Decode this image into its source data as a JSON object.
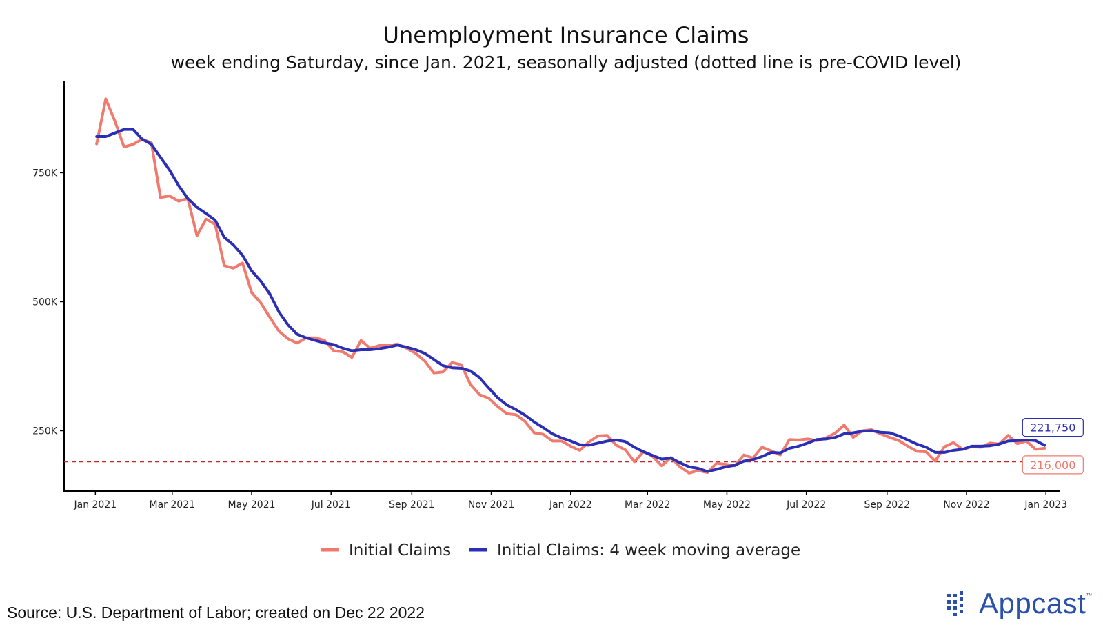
{
  "title": "Unemployment Insurance Claims",
  "subtitle": "week ending Saturday, since Jan. 2021, seasonally adjusted (dotted line is pre-COVID level)",
  "source": "Source: U.S. Department of Labor; created on Dec 22 2022",
  "logo": {
    "text": "Appcast",
    "tm": "™"
  },
  "chart_data": {
    "type": "line",
    "x_axis": {
      "type": "date",
      "range": [
        "2020-12-08",
        "2023-01-12"
      ],
      "ticks": [
        "2021-01-01",
        "2021-03-01",
        "2021-05-01",
        "2021-07-01",
        "2021-09-01",
        "2021-11-01",
        "2022-01-01",
        "2022-03-01",
        "2022-05-01",
        "2022-07-01",
        "2022-09-01",
        "2022-11-01",
        "2023-01-01"
      ],
      "tick_labels": [
        "Jan 2021",
        "Mar 2021",
        "May 2021",
        "Jul 2021",
        "Sep 2021",
        "Nov 2021",
        "Jan 2022",
        "Mar 2022",
        "May 2022",
        "Jul 2022",
        "Sep 2022",
        "Nov 2022",
        "Jan 2023"
      ]
    },
    "y_axis": {
      "range": [
        133000,
        927000
      ],
      "ticks": [
        250000,
        500000,
        750000
      ],
      "tick_labels": [
        "250K",
        "500K",
        "750K"
      ]
    },
    "reference_line": {
      "value": 190000,
      "style": "dotted",
      "color": "#c0282d"
    },
    "grid": false,
    "legend_position": "bottom",
    "series": [
      {
        "name": "Initial Claims",
        "color": "#ef7a6d",
        "end_label": "216,000",
        "points": [
          [
            "2021-01-02",
            806000
          ],
          [
            "2021-01-09",
            893000
          ],
          [
            "2021-01-16",
            850000
          ],
          [
            "2021-01-23",
            800000
          ],
          [
            "2021-01-30",
            805000
          ],
          [
            "2021-02-06",
            815000
          ],
          [
            "2021-02-13",
            808000
          ],
          [
            "2021-02-20",
            702000
          ],
          [
            "2021-02-27",
            705000
          ],
          [
            "2021-03-06",
            695000
          ],
          [
            "2021-03-13",
            700000
          ],
          [
            "2021-03-20",
            628000
          ],
          [
            "2021-03-27",
            660000
          ],
          [
            "2021-04-03",
            650000
          ],
          [
            "2021-04-10",
            570000
          ],
          [
            "2021-04-17",
            565000
          ],
          [
            "2021-04-24",
            575000
          ],
          [
            "2021-05-01",
            518000
          ],
          [
            "2021-05-08",
            498000
          ],
          [
            "2021-05-15",
            470000
          ],
          [
            "2021-05-22",
            443000
          ],
          [
            "2021-05-29",
            428000
          ],
          [
            "2021-06-05",
            420000
          ],
          [
            "2021-06-12",
            430000
          ],
          [
            "2021-06-19",
            430000
          ],
          [
            "2021-06-26",
            425000
          ],
          [
            "2021-07-03",
            405000
          ],
          [
            "2021-07-10",
            403000
          ],
          [
            "2021-07-17",
            392000
          ],
          [
            "2021-07-24",
            425000
          ],
          [
            "2021-07-31",
            410000
          ],
          [
            "2021-08-07",
            415000
          ],
          [
            "2021-08-14",
            415000
          ],
          [
            "2021-08-21",
            418000
          ],
          [
            "2021-08-28",
            410000
          ],
          [
            "2021-09-04",
            400000
          ],
          [
            "2021-09-11",
            385000
          ],
          [
            "2021-09-18",
            362000
          ],
          [
            "2021-09-25",
            364000
          ],
          [
            "2021-10-02",
            382000
          ],
          [
            "2021-10-09",
            378000
          ],
          [
            "2021-10-16",
            340000
          ],
          [
            "2021-10-23",
            320000
          ],
          [
            "2021-10-30",
            313000
          ],
          [
            "2021-11-06",
            297000
          ],
          [
            "2021-11-13",
            283000
          ],
          [
            "2021-11-20",
            281000
          ],
          [
            "2021-11-27",
            268000
          ],
          [
            "2021-12-04",
            246000
          ],
          [
            "2021-12-11",
            243000
          ],
          [
            "2021-12-18",
            230000
          ],
          [
            "2021-12-25",
            230000
          ],
          [
            "2022-01-01",
            220000
          ],
          [
            "2022-01-08",
            212000
          ],
          [
            "2022-01-15",
            228000
          ],
          [
            "2022-01-22",
            240000
          ],
          [
            "2022-01-29",
            241000
          ],
          [
            "2022-02-05",
            222000
          ],
          [
            "2022-02-12",
            213000
          ],
          [
            "2022-02-19",
            190000
          ],
          [
            "2022-02-26",
            210000
          ],
          [
            "2022-03-05",
            200000
          ],
          [
            "2022-03-12",
            182000
          ],
          [
            "2022-03-19",
            198000
          ],
          [
            "2022-03-26",
            180000
          ],
          [
            "2022-04-02",
            168000
          ],
          [
            "2022-04-09",
            173000
          ],
          [
            "2022-04-16",
            169000
          ],
          [
            "2022-04-23",
            187000
          ],
          [
            "2022-04-30",
            185000
          ],
          [
            "2022-05-07",
            182000
          ],
          [
            "2022-05-14",
            203000
          ],
          [
            "2022-05-21",
            197000
          ],
          [
            "2022-05-28",
            218000
          ],
          [
            "2022-06-04",
            211000
          ],
          [
            "2022-06-11",
            203000
          ],
          [
            "2022-06-18",
            233000
          ],
          [
            "2022-06-25",
            232000
          ],
          [
            "2022-07-02",
            234000
          ],
          [
            "2022-07-09",
            231000
          ],
          [
            "2022-07-16",
            236000
          ],
          [
            "2022-07-23",
            245000
          ],
          [
            "2022-07-30",
            261000
          ],
          [
            "2022-08-06",
            237000
          ],
          [
            "2022-08-13",
            250000
          ],
          [
            "2022-08-20",
            252000
          ],
          [
            "2022-08-27",
            244000
          ],
          [
            "2022-09-03",
            237000
          ],
          [
            "2022-09-10",
            231000
          ],
          [
            "2022-09-17",
            220000
          ],
          [
            "2022-09-24",
            210000
          ],
          [
            "2022-10-01",
            209000
          ],
          [
            "2022-10-08",
            191000
          ],
          [
            "2022-10-15",
            219000
          ],
          [
            "2022-10-22",
            227000
          ],
          [
            "2022-10-29",
            214000
          ],
          [
            "2022-11-05",
            219000
          ],
          [
            "2022-11-12",
            218000
          ],
          [
            "2022-11-19",
            226000
          ],
          [
            "2022-11-26",
            224000
          ],
          [
            "2022-12-03",
            241000
          ],
          [
            "2022-12-10",
            225000
          ],
          [
            "2022-12-17",
            230000
          ],
          [
            "2022-12-24",
            214000
          ],
          [
            "2022-12-31",
            216000
          ]
        ]
      },
      {
        "name": "Initial Claims: 4 week moving average",
        "color": "#2b2fb5",
        "end_label": "221,750",
        "points": [
          [
            "2021-01-02",
            820000
          ],
          [
            "2021-01-09",
            820000
          ],
          [
            "2021-01-16",
            827000
          ],
          [
            "2021-01-23",
            834000
          ],
          [
            "2021-01-30",
            834000
          ],
          [
            "2021-02-06",
            815000
          ],
          [
            "2021-02-13",
            805000
          ],
          [
            "2021-02-20",
            780000
          ],
          [
            "2021-02-27",
            755000
          ],
          [
            "2021-03-06",
            725000
          ],
          [
            "2021-03-13",
            700000
          ],
          [
            "2021-03-20",
            683000
          ],
          [
            "2021-03-27",
            671000
          ],
          [
            "2021-04-03",
            658000
          ],
          [
            "2021-04-10",
            625000
          ],
          [
            "2021-04-17",
            610000
          ],
          [
            "2021-04-24",
            590000
          ],
          [
            "2021-05-01",
            560000
          ],
          [
            "2021-05-08",
            540000
          ],
          [
            "2021-05-15",
            515000
          ],
          [
            "2021-05-22",
            480000
          ],
          [
            "2021-05-29",
            455000
          ],
          [
            "2021-06-05",
            437000
          ],
          [
            "2021-06-12",
            430000
          ],
          [
            "2021-06-19",
            425000
          ],
          [
            "2021-06-26",
            420000
          ],
          [
            "2021-07-03",
            417000
          ],
          [
            "2021-07-10",
            410000
          ],
          [
            "2021-07-17",
            405000
          ],
          [
            "2021-07-24",
            407000
          ],
          [
            "2021-07-31",
            407000
          ],
          [
            "2021-08-07",
            409000
          ],
          [
            "2021-08-14",
            412000
          ],
          [
            "2021-08-21",
            416000
          ],
          [
            "2021-08-28",
            412000
          ],
          [
            "2021-09-04",
            407000
          ],
          [
            "2021-09-11",
            400000
          ],
          [
            "2021-09-18",
            388000
          ],
          [
            "2021-09-25",
            376000
          ],
          [
            "2021-10-02",
            372000
          ],
          [
            "2021-10-09",
            371000
          ],
          [
            "2021-10-16",
            366000
          ],
          [
            "2021-10-23",
            353000
          ],
          [
            "2021-10-30",
            333000
          ],
          [
            "2021-11-06",
            314000
          ],
          [
            "2021-11-13",
            300000
          ],
          [
            "2021-11-20",
            291000
          ],
          [
            "2021-11-27",
            280000
          ],
          [
            "2021-12-04",
            267000
          ],
          [
            "2021-12-11",
            256000
          ],
          [
            "2021-12-18",
            244000
          ],
          [
            "2021-12-25",
            236000
          ],
          [
            "2022-01-01",
            230000
          ],
          [
            "2022-01-08",
            223000
          ],
          [
            "2022-01-15",
            222000
          ],
          [
            "2022-01-22",
            226000
          ],
          [
            "2022-01-29",
            230000
          ],
          [
            "2022-02-05",
            232000
          ],
          [
            "2022-02-12",
            229000
          ],
          [
            "2022-02-19",
            218000
          ],
          [
            "2022-02-26",
            209000
          ],
          [
            "2022-03-05",
            202000
          ],
          [
            "2022-03-12",
            195000
          ],
          [
            "2022-03-19",
            197000
          ],
          [
            "2022-03-26",
            188000
          ],
          [
            "2022-04-02",
            180000
          ],
          [
            "2022-04-09",
            177000
          ],
          [
            "2022-04-16",
            171000
          ],
          [
            "2022-04-23",
            175000
          ],
          [
            "2022-04-30",
            180000
          ],
          [
            "2022-05-07",
            183000
          ],
          [
            "2022-05-14",
            191000
          ],
          [
            "2022-05-21",
            194000
          ],
          [
            "2022-05-28",
            200000
          ],
          [
            "2022-06-04",
            208000
          ],
          [
            "2022-06-11",
            207000
          ],
          [
            "2022-06-18",
            216000
          ],
          [
            "2022-06-25",
            220000
          ],
          [
            "2022-07-02",
            226000
          ],
          [
            "2022-07-09",
            233000
          ],
          [
            "2022-07-16",
            234000
          ],
          [
            "2022-07-23",
            237000
          ],
          [
            "2022-07-30",
            244000
          ],
          [
            "2022-08-06",
            246000
          ],
          [
            "2022-08-13",
            249000
          ],
          [
            "2022-08-20",
            250000
          ],
          [
            "2022-08-27",
            247000
          ],
          [
            "2022-09-03",
            246000
          ],
          [
            "2022-09-10",
            240000
          ],
          [
            "2022-09-17",
            232000
          ],
          [
            "2022-09-24",
            224000
          ],
          [
            "2022-10-01",
            218000
          ],
          [
            "2022-10-08",
            208000
          ],
          [
            "2022-10-15",
            208000
          ],
          [
            "2022-10-22",
            212000
          ],
          [
            "2022-10-29",
            214000
          ],
          [
            "2022-11-05",
            220000
          ],
          [
            "2022-11-12",
            220000
          ],
          [
            "2022-11-19",
            221000
          ],
          [
            "2022-11-26",
            224000
          ],
          [
            "2022-12-03",
            230000
          ],
          [
            "2022-12-10",
            231000
          ],
          [
            "2022-12-17",
            232000
          ],
          [
            "2022-12-24",
            231000
          ],
          [
            "2022-12-31",
            221750
          ]
        ]
      }
    ]
  }
}
